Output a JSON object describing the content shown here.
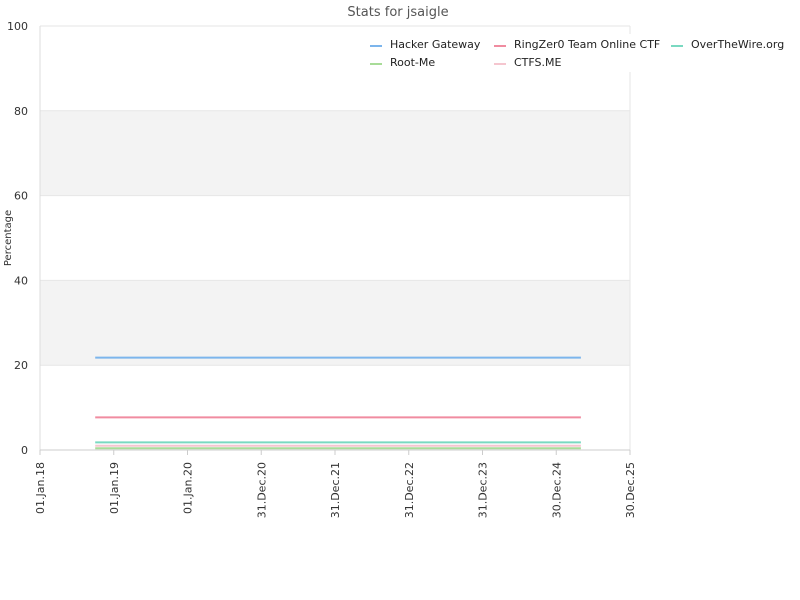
{
  "chart_data": {
    "type": "line",
    "title": "Stats for jsaigle",
    "xlabel": "",
    "ylabel": "Percentage",
    "ylim": [
      0,
      100
    ],
    "y_ticks": [
      0,
      20,
      40,
      60,
      80,
      100
    ],
    "xlim": [
      "2018-01-01",
      "2025-12-30"
    ],
    "x_ticks": [
      {
        "date": "2018-01-01",
        "label": "01.Jan.18"
      },
      {
        "date": "2019-01-01",
        "label": "01.Jan.19"
      },
      {
        "date": "2020-01-01",
        "label": "01.Jan.20"
      },
      {
        "date": "2020-12-31",
        "label": "31.Dec.20"
      },
      {
        "date": "2021-12-31",
        "label": "31.Dec.21"
      },
      {
        "date": "2022-12-31",
        "label": "31.Dec.22"
      },
      {
        "date": "2023-12-31",
        "label": "31.Dec.23"
      },
      {
        "date": "2024-12-30",
        "label": "30.Dec.24"
      },
      {
        "date": "2025-12-30",
        "label": "30.Dec.25"
      }
    ],
    "grid": true,
    "legend_position": "top-right",
    "series": [
      {
        "name": "Hacker Gateway",
        "color": "#7cb5ec",
        "x": [
          "2018-10-01",
          "2025-05-01"
        ],
        "y": [
          21.8,
          21.8
        ]
      },
      {
        "name": "RingZer0 Team Online CTF",
        "color": "#f08ca0",
        "x": [
          "2018-10-01",
          "2025-05-01"
        ],
        "y": [
          7.7,
          7.7
        ]
      },
      {
        "name": "OverTheWire.org",
        "color": "#7ad9c1",
        "x": [
          "2018-10-01",
          "2025-05-01"
        ],
        "y": [
          1.8,
          1.8
        ]
      },
      {
        "name": "Root-Me",
        "color": "#a8dc98",
        "x": [
          "2018-10-01",
          "2025-05-01"
        ],
        "y": [
          0.4,
          0.4
        ]
      },
      {
        "name": "CTFS.ME",
        "color": "#f5c6cf",
        "x": [
          "2018-10-01",
          "2025-05-01"
        ],
        "y": [
          1.0,
          1.0
        ]
      }
    ]
  }
}
